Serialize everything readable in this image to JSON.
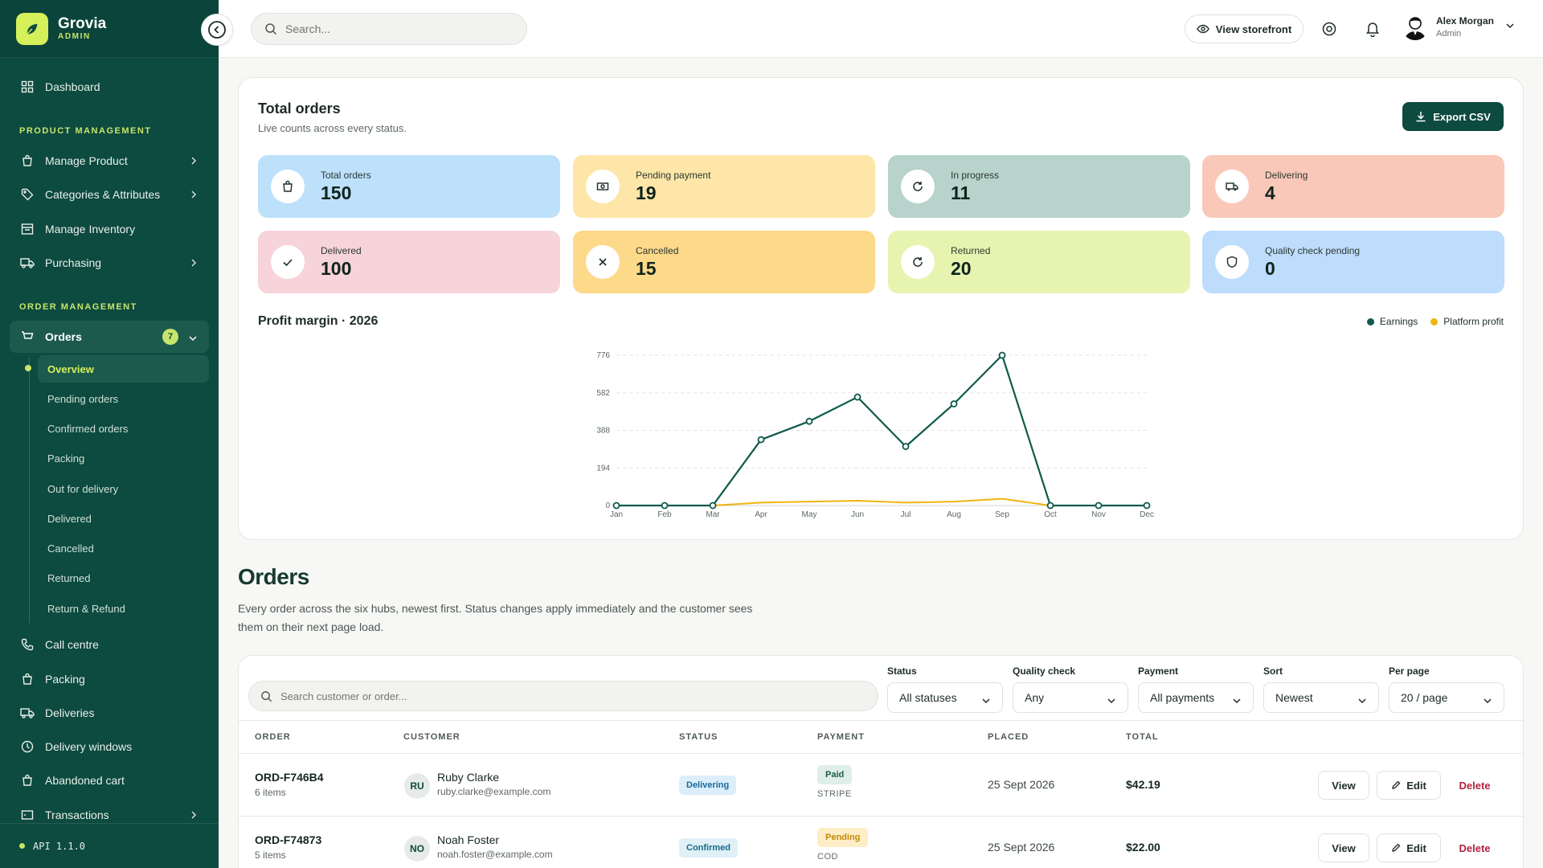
{
  "brand": {
    "name": "Grovia",
    "sub": "ADMIN"
  },
  "sidebar": {
    "dashboard": "Dashboard",
    "section_product": "PRODUCT MANAGEMENT",
    "manage_product": "Manage Product",
    "categories": "Categories & Attributes",
    "inventory": "Manage Inventory",
    "purchasing": "Purchasing",
    "section_order": "ORDER MANAGEMENT",
    "orders": "Orders",
    "orders_badge": "7",
    "order_subitems": [
      "Overview",
      "Pending orders",
      "Confirmed orders",
      "Packing",
      "Out for delivery",
      "Delivered",
      "Cancelled",
      "Returned",
      "Return & Refund"
    ],
    "call_centre": "Call centre",
    "packing": "Packing",
    "deliveries": "Deliveries",
    "delivery_windows": "Delivery windows",
    "abandoned_cart": "Abandoned cart",
    "transactions": "Transactions",
    "api_version": "API 1.1.0"
  },
  "topbar": {
    "search_placeholder": "Search...",
    "storefront": "View storefront",
    "user_name": "Alex Morgan",
    "user_role": "Admin"
  },
  "stats": {
    "title": "Total orders",
    "subtitle": "Live counts across every status.",
    "export": "Export CSV",
    "tiles": [
      {
        "label": "Total orders",
        "value": "150",
        "icon": "bag-icon",
        "color": "#bde0fb"
      },
      {
        "label": "Pending payment",
        "value": "19",
        "icon": "cash-icon",
        "color": "#fde6a8"
      },
      {
        "label": "In progress",
        "value": "11",
        "icon": "refresh-icon",
        "color": "#b7d3cb"
      },
      {
        "label": "Delivering",
        "value": "4",
        "icon": "truck-icon",
        "color": "#f9c8b8"
      },
      {
        "label": "Delivered",
        "value": "100",
        "icon": "check-icon",
        "color": "#f7d3da"
      },
      {
        "label": "Cancelled",
        "value": "15",
        "icon": "x-icon",
        "color": "#fdd98a"
      },
      {
        "label": "Returned",
        "value": "20",
        "icon": "return-icon",
        "color": "#e6f4b0"
      },
      {
        "label": "Quality check pending",
        "value": "0",
        "icon": "shield-icon",
        "color": "#bedcfb"
      }
    ]
  },
  "chart_data": {
    "type": "line",
    "title": "Profit margin · 2026",
    "categories": [
      "Jan",
      "Feb",
      "Mar",
      "Apr",
      "May",
      "Jun",
      "Jul",
      "Aug",
      "Sep",
      "Oct",
      "Nov",
      "Dec"
    ],
    "yticks": [
      "0",
      "194",
      "388",
      "582",
      "776"
    ],
    "ylim": [
      0,
      776
    ],
    "legend_position": "top-right",
    "series": [
      {
        "name": "Earnings",
        "color": "#0f5a4c",
        "values": [
          0,
          0,
          0,
          340,
          435,
          560,
          305,
          525,
          776,
          0,
          0,
          0
        ]
      },
      {
        "name": "Platform profit",
        "color": "#f0b40f",
        "values": [
          0,
          0,
          0,
          15,
          20,
          25,
          15,
          20,
          35,
          0,
          0,
          0
        ]
      }
    ]
  },
  "orders": {
    "heading": "Orders",
    "description": "Every order across the six hubs, newest first. Status changes apply immediately and the customer sees them on their next page load.",
    "search_placeholder": "Search customer or order...",
    "filters": [
      {
        "label": "Status",
        "value": "All statuses"
      },
      {
        "label": "Quality check",
        "value": "Any"
      },
      {
        "label": "Payment",
        "value": "All payments"
      },
      {
        "label": "Sort",
        "value": "Newest"
      },
      {
        "label": "Per page",
        "value": "20 / page"
      }
    ],
    "columns": [
      "ORDER",
      "CUSTOMER",
      "STATUS",
      "PAYMENT",
      "PLACED",
      "TOTAL"
    ],
    "actions": {
      "view": "View",
      "edit": "Edit",
      "delete": "Delete"
    },
    "rows": [
      {
        "id": "ORD-F746B4",
        "items": "6 items",
        "initials": "RU",
        "customer": "Ruby Clarke",
        "email": "ruby.clarke@example.com",
        "status": "Delivering",
        "payment": "Paid",
        "method": "STRIPE",
        "placed": "25 Sept 2026",
        "total": "$42.19"
      },
      {
        "id": "ORD-F74873",
        "items": "5 items",
        "initials": "NO",
        "customer": "Noah Foster",
        "email": "noah.foster@example.com",
        "status": "Confirmed",
        "payment": "Pending",
        "method": "COD",
        "placed": "25 Sept 2026",
        "total": "$22.00"
      }
    ]
  }
}
